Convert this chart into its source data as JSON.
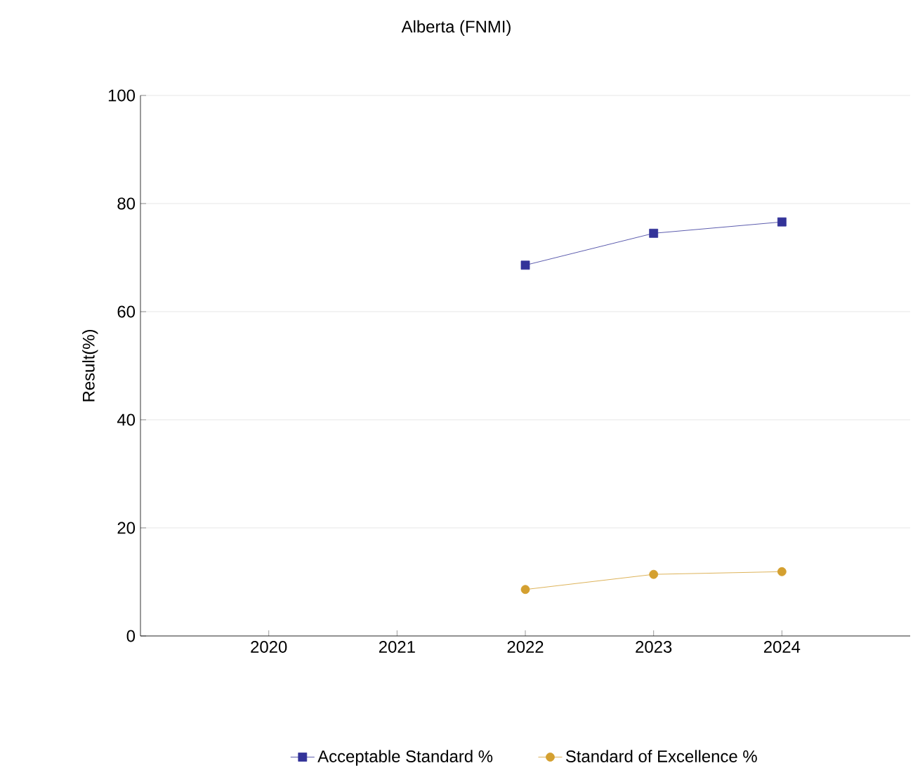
{
  "chart_data": {
    "type": "line",
    "title": "Alberta (FNMI)",
    "ylabel": "Result(%)",
    "categories": [
      "2020",
      "2021",
      "2022",
      "2023",
      "2024"
    ],
    "series": [
      {
        "name": "Acceptable Standard %",
        "color": "#333399",
        "marker": "square",
        "values": [
          null,
          null,
          68.6,
          74.5,
          76.6
        ]
      },
      {
        "name": "Standard of Excellence %",
        "color": "#d4a030",
        "marker": "circle",
        "values": [
          null,
          null,
          8.6,
          11.4,
          11.9
        ]
      }
    ],
    "ylim": [
      0,
      100
    ],
    "yticks": [
      0,
      20,
      40,
      60,
      80,
      100
    ],
    "grid": "y",
    "legend": "bottom"
  }
}
